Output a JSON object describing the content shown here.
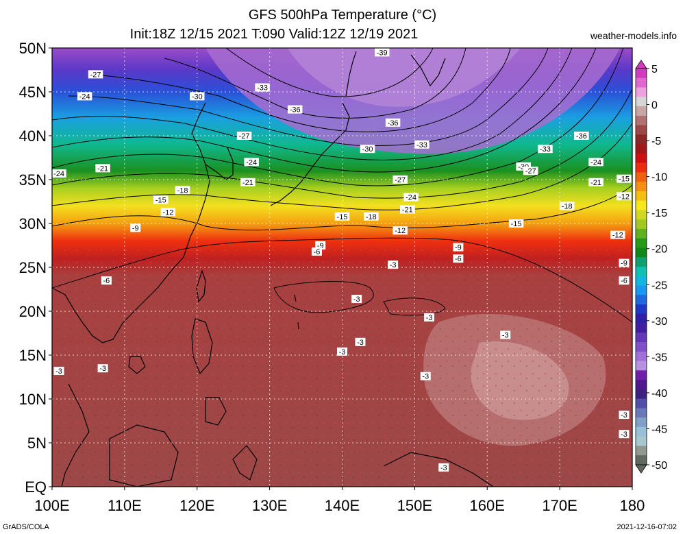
{
  "header": {
    "title_line1": "GFS 500hPa Temperature (°C)",
    "title_line2": "Init:18Z 12/15 2021 T:090 Valid:12Z 12/19 2021",
    "site": "weather-models.info"
  },
  "footer": {
    "credit": "GrADS/COLA",
    "timestamp": "2021-12-16-07:02"
  },
  "map": {
    "lat_labels": [
      "50N",
      "45N",
      "40N",
      "35N",
      "30N",
      "25N",
      "20N",
      "15N",
      "10N",
      "5N",
      "EQ"
    ],
    "lon_labels": [
      "100E",
      "110E",
      "120E",
      "130E",
      "140E",
      "150E",
      "160E",
      "170E",
      "180"
    ],
    "lat_values": [
      50,
      45,
      40,
      35,
      30,
      25,
      20,
      15,
      10,
      5,
      0
    ],
    "lon_values": [
      100,
      110,
      120,
      130,
      140,
      150,
      160,
      170,
      180
    ],
    "isotherms": [
      -39,
      -36,
      -33,
      -30,
      -27,
      -24,
      -21,
      -18,
      -15,
      -12,
      -9,
      -6,
      -3
    ],
    "contour_labels": [
      {
        "text": "-39",
        "lon": 145.5,
        "lat": 49.5
      },
      {
        "text": "-27",
        "lon": 106,
        "lat": 47
      },
      {
        "text": "-24",
        "lon": 104.5,
        "lat": 44.5
      },
      {
        "text": "-30",
        "lon": 120,
        "lat": 44.5
      },
      {
        "text": "-33",
        "lon": 129,
        "lat": 45.5
      },
      {
        "text": "-36",
        "lon": 133.5,
        "lat": 43
      },
      {
        "text": "-36",
        "lon": 147,
        "lat": 41.5
      },
      {
        "text": "-36",
        "lon": 173,
        "lat": 40
      },
      {
        "text": "-27",
        "lon": 126.5,
        "lat": 40
      },
      {
        "text": "-30",
        "lon": 143.5,
        "lat": 38.5
      },
      {
        "text": "-33",
        "lon": 151,
        "lat": 39
      },
      {
        "text": "-33",
        "lon": 168,
        "lat": 38.5
      },
      {
        "text": "-24",
        "lon": 127.5,
        "lat": 37
      },
      {
        "text": "-21",
        "lon": 107,
        "lat": 36.3
      },
      {
        "text": "-24",
        "lon": 175,
        "lat": 37
      },
      {
        "text": "-30",
        "lon": 165,
        "lat": 36.5
      },
      {
        "text": "-27",
        "lon": 166,
        "lat": 36
      },
      {
        "text": "-24",
        "lon": 100.5,
        "lat": 35.7
      },
      {
        "text": "-21",
        "lon": 127,
        "lat": 34.7
      },
      {
        "text": "-27",
        "lon": 148,
        "lat": 35
      },
      {
        "text": "-21",
        "lon": 175,
        "lat": 34.7
      },
      {
        "text": "-15",
        "lon": 188,
        "lat": 35.1
      },
      {
        "text": "-18",
        "lon": 118,
        "lat": 33.8
      },
      {
        "text": "-24",
        "lon": 149.5,
        "lat": 33
      },
      {
        "text": "-12",
        "lon": 190,
        "lat": 33.1
      },
      {
        "text": "-15",
        "lon": 115,
        "lat": 32.7
      },
      {
        "text": "-21",
        "lon": 149,
        "lat": 31.6
      },
      {
        "text": "-18",
        "lon": 171,
        "lat": 32
      },
      {
        "text": "-12",
        "lon": 116,
        "lat": 31.3
      },
      {
        "text": "-15",
        "lon": 140,
        "lat": 30.8
      },
      {
        "text": "-18",
        "lon": 144,
        "lat": 30.8
      },
      {
        "text": "-9",
        "lon": 111.5,
        "lat": 29.5
      },
      {
        "text": "-15",
        "lon": 164,
        "lat": 30
      },
      {
        "text": "-12",
        "lon": 148,
        "lat": 29.2
      },
      {
        "text": "-12",
        "lon": 178,
        "lat": 28.7
      },
      {
        "text": "-9",
        "lon": 137,
        "lat": 27.5
      },
      {
        "text": "-9",
        "lon": 156,
        "lat": 27.3
      },
      {
        "text": "-6",
        "lon": 136.5,
        "lat": 26.8
      },
      {
        "text": "-6",
        "lon": 156,
        "lat": 26
      },
      {
        "text": "-9",
        "lon": 194,
        "lat": 25.5
      },
      {
        "text": "-3",
        "lon": 147,
        "lat": 25.3
      },
      {
        "text": "-6",
        "lon": 107.5,
        "lat": 23.5
      },
      {
        "text": "-6",
        "lon": 192,
        "lat": 23.5
      },
      {
        "text": "-3",
        "lon": 142,
        "lat": 21.4
      },
      {
        "text": "-3",
        "lon": 152,
        "lat": 19.3
      },
      {
        "text": "-3",
        "lon": 162.5,
        "lat": 17.3
      },
      {
        "text": "-3",
        "lon": 142.5,
        "lat": 16.5
      },
      {
        "text": "-3",
        "lon": 140,
        "lat": 15.4
      },
      {
        "text": "-3",
        "lon": 100.8,
        "lat": 13.2
      },
      {
        "text": "-3",
        "lon": 107,
        "lat": 13.5
      },
      {
        "text": "-3",
        "lon": 151.5,
        "lat": 12.6
      },
      {
        "text": "-3",
        "lon": 196,
        "lat": 8.2
      },
      {
        "text": "-3",
        "lon": 197,
        "lat": 6
      },
      {
        "text": "-3",
        "lon": 154,
        "lat": 2.2
      },
      {
        "text": "-3",
        "lon": 163,
        "lat": -2
      },
      {
        "text": "-3",
        "lon": 196,
        "lat": -2
      }
    ]
  },
  "colorbar": {
    "labels": [
      "5",
      "0",
      "-5",
      "-10",
      "-15",
      "-20",
      "-25",
      "-30",
      "-35",
      "-40",
      "-45",
      "-50"
    ],
    "colors": [
      "#d23bbd",
      "#e066d0",
      "#efa0e0",
      "#d6d6d6",
      "#c8a6a6",
      "#b37272",
      "#9c4848",
      "#8a2828",
      "#a01818",
      "#d01010",
      "#ee2a10",
      "#f06010",
      "#f49010",
      "#f4c010",
      "#f4e818",
      "#d0d820",
      "#a0c820",
      "#60b020",
      "#289818",
      "#108818",
      "#10a070",
      "#10c0b0",
      "#10b8e0",
      "#1898f0",
      "#2068e0",
      "#2038c8",
      "#3020a8",
      "#4020a0",
      "#6038b8",
      "#8050c8",
      "#a070d8",
      "#b890e0",
      "#7020a8",
      "#501890",
      "#402080",
      "#5050a8",
      "#6878b8",
      "#80a0c8",
      "#98c0d8",
      "#a8c8d0",
      "#909890",
      "#606860"
    ]
  },
  "colors": {
    "land_outline": "#000000",
    "grid": "#ffffff",
    "warm_field": "#9c4848"
  }
}
